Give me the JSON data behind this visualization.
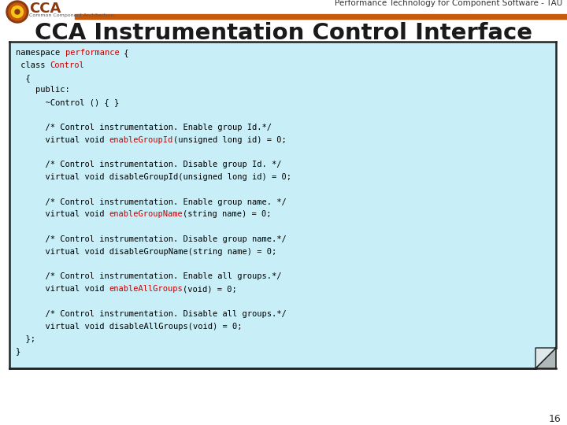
{
  "title": "CCA Instrumentation Control Interface",
  "header_text": "Performance Technology for Component Software - TAU",
  "slide_number": "16",
  "bg_color": "#ffffff",
  "header_bar_color": "#c8590a",
  "title_color": "#1a1a1a",
  "code_bg_color": "#c8eff8",
  "code_border_color": "#222222",
  "logo_outer": "#8B3A0F",
  "logo_mid": "#c8590a",
  "logo_inner": "#f5c518",
  "logo_center": "#8B3A0F",
  "cca_text_color": "#8B3A0F",
  "subtext_color": "#555555",
  "header_right_color": "#333333",
  "code_text_color": "#000000",
  "code_red_color": "#cc0000",
  "slide_num_color": "#333333",
  "code_lines": [
    [
      {
        "t": "namespace ",
        "c": "#000000"
      },
      {
        "t": "performance",
        "c": "#cc0000"
      },
      {
        "t": " {",
        "c": "#000000"
      }
    ],
    [
      {
        "t": " class ",
        "c": "#000000"
      },
      {
        "t": "Control",
        "c": "#cc0000"
      }
    ],
    [
      {
        "t": "  {",
        "c": "#000000"
      }
    ],
    [
      {
        "t": "    public:",
        "c": "#000000"
      }
    ],
    [
      {
        "t": "      ~Control () { }",
        "c": "#000000"
      }
    ],
    [],
    [
      {
        "t": "      /* Control instrumentation. Enable group Id.*/",
        "c": "#000000"
      }
    ],
    [
      {
        "t": "      virtual void ",
        "c": "#000000"
      },
      {
        "t": "enableGroupId",
        "c": "#cc0000"
      },
      {
        "t": "(unsigned long id) = 0;",
        "c": "#000000"
      }
    ],
    [],
    [
      {
        "t": "      /* Control instrumentation. Disable group Id. */",
        "c": "#000000"
      }
    ],
    [
      {
        "t": "      virtual void disableGroupId(unsigned long id) = 0;",
        "c": "#000000"
      }
    ],
    [],
    [
      {
        "t": "      /* Control instrumentation. Enable group name. */",
        "c": "#000000"
      }
    ],
    [
      {
        "t": "      virtual void ",
        "c": "#000000"
      },
      {
        "t": "enableGroupName",
        "c": "#cc0000"
      },
      {
        "t": "(string name) = 0;",
        "c": "#000000"
      }
    ],
    [],
    [
      {
        "t": "      /* Control instrumentation. Disable group name.*/",
        "c": "#000000"
      }
    ],
    [
      {
        "t": "      virtual void disableGroupName(string name) = 0;",
        "c": "#000000"
      }
    ],
    [],
    [
      {
        "t": "      /* Control instrumentation. Enable all groups.*/",
        "c": "#000000"
      }
    ],
    [
      {
        "t": "      virtual void ",
        "c": "#000000"
      },
      {
        "t": "enableAllGroups",
        "c": "#cc0000"
      },
      {
        "t": "(void) = 0;",
        "c": "#000000"
      }
    ],
    [],
    [
      {
        "t": "      /* Control instrumentation. Disable all groups.*/",
        "c": "#000000"
      }
    ],
    [
      {
        "t": "      virtual void disableAllGroups(void) = 0;",
        "c": "#000000"
      }
    ],
    [
      {
        "t": "  };",
        "c": "#000000"
      }
    ],
    [
      {
        "t": "}",
        "c": "#000000"
      }
    ]
  ]
}
